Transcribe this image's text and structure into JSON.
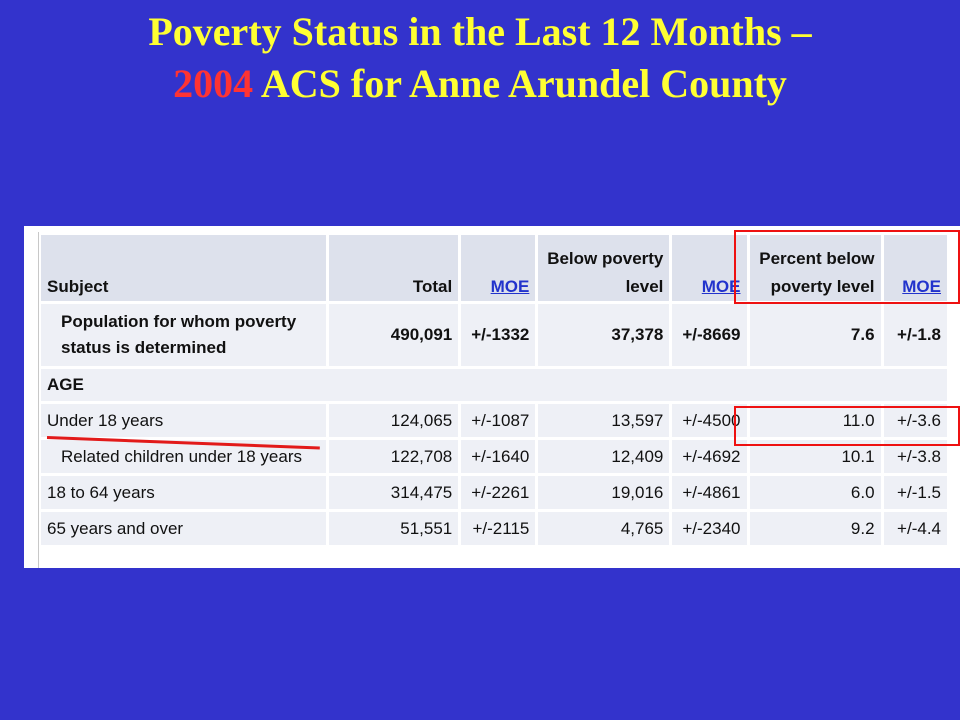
{
  "title": {
    "line1": "Poverty Status in the Last 12 Months –",
    "year": "2004",
    "line2_rest": " ACS for Anne Arundel County"
  },
  "table": {
    "headers": {
      "subject": "Subject",
      "total": "Total",
      "moe": "MOE",
      "below_poverty_line1": "Below poverty",
      "below_poverty_line2": "level",
      "percent_below_line1": "Percent below",
      "percent_below_line2": "poverty level"
    },
    "population": {
      "label_line1": "Population for whom poverty",
      "label_line2": "status is determined",
      "total": "490,091",
      "total_moe": "+/-1332",
      "below": "37,378",
      "below_moe": "+/-8669",
      "percent": "7.6",
      "percent_moe": "+/-1.8"
    },
    "section_label": "AGE",
    "rows": [
      {
        "label": "Under 18 years",
        "total": "124,065",
        "total_moe": "+/-1087",
        "below": "13,597",
        "below_moe": "+/-4500",
        "percent": "11.0",
        "percent_moe": "+/-3.6"
      },
      {
        "label": "Related children under 18 years",
        "total": "122,708",
        "total_moe": "+/-1640",
        "below": "12,409",
        "below_moe": "+/-4692",
        "percent": "10.1",
        "percent_moe": "+/-3.8"
      },
      {
        "label": "18 to 64 years",
        "total": "314,475",
        "total_moe": "+/-2261",
        "below": "19,016",
        "below_moe": "+/-4861",
        "percent": "6.0",
        "percent_moe": "+/-1.5"
      },
      {
        "label": "65 years and over",
        "total": "51,551",
        "total_moe": "+/-2115",
        "below": "4,765",
        "below_moe": "+/-2340",
        "percent": "9.2",
        "percent_moe": "+/-4.4"
      }
    ]
  },
  "colors": {
    "background": "#3333cc",
    "title": "#ffff33",
    "highlight_year": "#ff3333",
    "annotation": "#ee1111",
    "link": "#2233cc"
  }
}
